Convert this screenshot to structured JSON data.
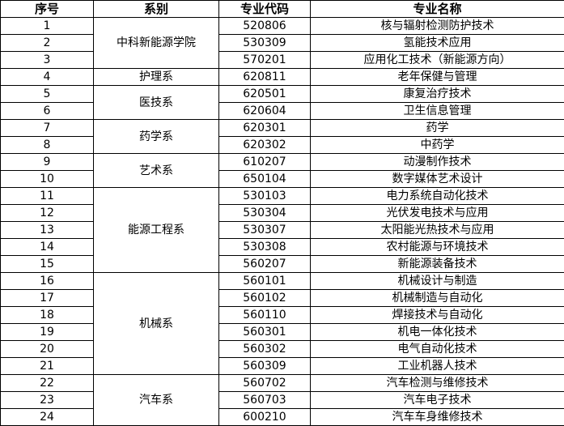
{
  "headers": [
    "序号",
    "系别",
    "专业代码",
    "专业名称"
  ],
  "departments": [
    {
      "name": "中科新能源学院",
      "rows": [
        {
          "no": "1",
          "code": "520806",
          "major": "核与辐射检测防护技术"
        },
        {
          "no": "2",
          "code": "530309",
          "major": "氢能技术应用"
        },
        {
          "no": "3",
          "code": "570201",
          "major": "应用化工技术（新能源方向）"
        }
      ]
    },
    {
      "name": "护理系",
      "rows": [
        {
          "no": "4",
          "code": "620811",
          "major": "老年保健与管理"
        }
      ]
    },
    {
      "name": "医技系",
      "rows": [
        {
          "no": "5",
          "code": "620501",
          "major": "康复治疗技术"
        },
        {
          "no": "6",
          "code": "620604",
          "major": "卫生信息管理"
        }
      ]
    },
    {
      "name": "药学系",
      "rows": [
        {
          "no": "7",
          "code": "620301",
          "major": "药学"
        },
        {
          "no": "8",
          "code": "620302",
          "major": "中药学"
        }
      ]
    },
    {
      "name": "艺术系",
      "rows": [
        {
          "no": "9",
          "code": "610207",
          "major": "动漫制作技术"
        },
        {
          "no": "10",
          "code": "650104",
          "major": "数字媒体艺术设计"
        }
      ]
    },
    {
      "name": "能源工程系",
      "rows": [
        {
          "no": "11",
          "code": "530103",
          "major": "电力系统自动化技术"
        },
        {
          "no": "12",
          "code": "530304",
          "major": "光伏发电技术与应用"
        },
        {
          "no": "13",
          "code": "530307",
          "major": "太阳能光热技术与应用"
        },
        {
          "no": "14",
          "code": "530308",
          "major": "农村能源与环境技术"
        },
        {
          "no": "15",
          "code": "560207",
          "major": "新能源装备技术"
        }
      ]
    },
    {
      "name": "机械系",
      "rows": [
        {
          "no": "16",
          "code": "560101",
          "major": "机械设计与制造"
        },
        {
          "no": "17",
          "code": "560102",
          "major": "机械制造与自动化"
        },
        {
          "no": "18",
          "code": "560110",
          "major": "焊接技术与自动化"
        },
        {
          "no": "19",
          "code": "560301",
          "major": "机电一体化技术"
        },
        {
          "no": "20",
          "code": "560302",
          "major": "电气自动化技术"
        },
        {
          "no": "21",
          "code": "560309",
          "major": "工业机器人技术"
        }
      ]
    },
    {
      "name": "汽车系",
      "rows": [
        {
          "no": "22",
          "code": "560702",
          "major": "汽车检测与维修技术"
        },
        {
          "no": "23",
          "code": "560703",
          "major": "汽车电子技术"
        },
        {
          "no": "24",
          "code": "600210",
          "major": "汽车车身维修技术"
        }
      ]
    }
  ]
}
